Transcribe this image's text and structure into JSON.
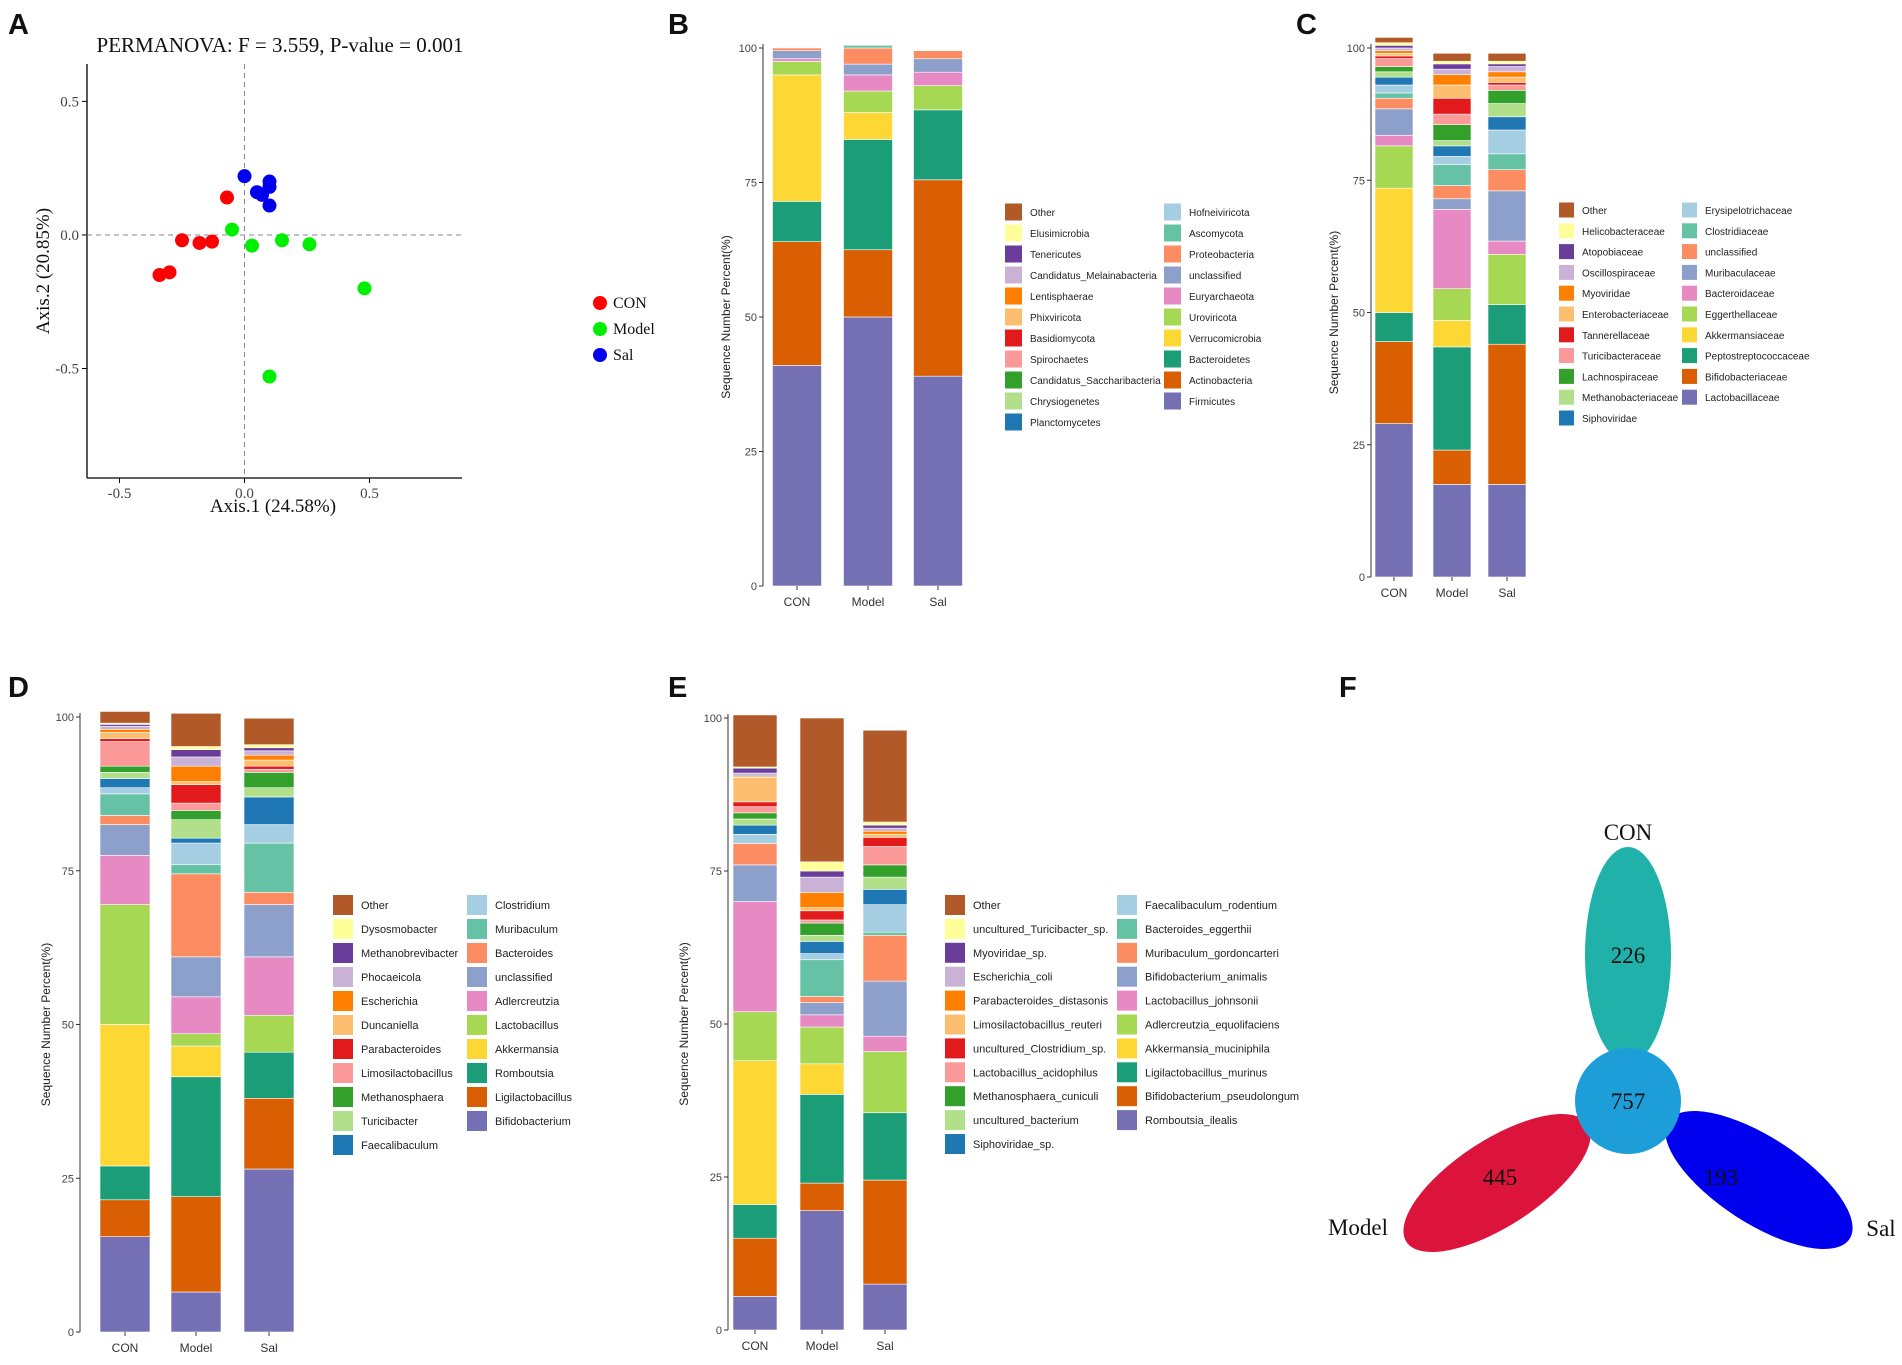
{
  "panels": {
    "A": "A",
    "B": "B",
    "C": "C",
    "D": "D",
    "E": "E",
    "F": "F"
  },
  "chart_data": [
    {
      "panel": "A",
      "type": "scatter",
      "title": "PERMANOVA: F = 3.559, P-value = 0.001",
      "xlabel": "Axis.1 (24.58%)",
      "ylabel": "Axis.2 (20.85%)",
      "xlim": [
        -0.63,
        0.87
      ],
      "ylim": [
        -0.91,
        0.64
      ],
      "xticks": [
        -0.5,
        0.0,
        0.5
      ],
      "yticks": [
        0.5,
        0.0,
        -0.5
      ],
      "xtick_labels": [
        "-0.5",
        "0.0",
        "0.5"
      ],
      "ytick_labels": [
        "0.5",
        "0.0",
        "-0.5"
      ],
      "series": [
        {
          "name": "CON",
          "color": "#ff0000",
          "points": [
            [
              -0.34,
              -0.15
            ],
            [
              -0.3,
              -0.14
            ],
            [
              -0.25,
              -0.02
            ],
            [
              -0.18,
              -0.03
            ],
            [
              -0.13,
              -0.025
            ],
            [
              -0.07,
              0.14
            ]
          ]
        },
        {
          "name": "Model",
          "color": "#00ee00",
          "points": [
            [
              -0.05,
              0.02
            ],
            [
              0.03,
              -0.04
            ],
            [
              0.15,
              -0.02
            ],
            [
              0.26,
              -0.035
            ],
            [
              0.48,
              -0.2
            ],
            [
              0.1,
              -0.53
            ]
          ]
        },
        {
          "name": "Sal",
          "color": "#0000ee",
          "points": [
            [
              0.0,
              0.22
            ],
            [
              0.05,
              0.16
            ],
            [
              0.07,
              0.15
            ],
            [
              0.1,
              0.2
            ],
            [
              0.1,
              0.18
            ],
            [
              0.1,
              0.11
            ]
          ]
        }
      ]
    },
    {
      "panel": "B",
      "type": "bar",
      "stacked": true,
      "ylabel": "Sequence Number Percent(%)",
      "ylim": [
        0,
        100
      ],
      "yticks": [
        "0",
        "25",
        "50",
        "75",
        "100"
      ],
      "categories": [
        "CON",
        "Model",
        "Sal"
      ],
      "series": [
        {
          "name": "Firmicutes",
          "color": "#7570b3",
          "values": [
            41,
            50,
            39
          ]
        },
        {
          "name": "Actinobacteria",
          "color": "#d95f02",
          "values": [
            23,
            12.5,
            36.5
          ]
        },
        {
          "name": "Bacteroidetes",
          "color": "#1b9e77",
          "values": [
            7.5,
            20.5,
            13
          ]
        },
        {
          "name": "Verrucomicrobia",
          "color": "#fdd835",
          "values": [
            23.5,
            5,
            0
          ]
        },
        {
          "name": "Uroviricota",
          "color": "#a6d854",
          "values": [
            2.5,
            4,
            4.5
          ]
        },
        {
          "name": "Euryarchaeota",
          "color": "#e78ac3",
          "values": [
            0.5,
            3,
            2.5
          ]
        },
        {
          "name": "unclassified",
          "color": "#8da0cb",
          "values": [
            1.5,
            2,
            2.5
          ]
        },
        {
          "name": "Proteobacteria",
          "color": "#fc8d62",
          "values": [
            0.5,
            3,
            1.5
          ]
        },
        {
          "name": "Ascomycota",
          "color": "#66c2a5",
          "values": [
            0,
            0.5,
            0
          ]
        },
        {
          "name": "Hofneiviricota",
          "color": "#a6cee3",
          "values": [
            0,
            0,
            0
          ]
        },
        {
          "name": "Planctomycetes",
          "color": "#1f78b4",
          "values": [
            0,
            0,
            0
          ]
        },
        {
          "name": "Chrysiogenetes",
          "color": "#b2df8a",
          "values": [
            0,
            0,
            0
          ]
        },
        {
          "name": "Candidatus_Saccharibacteria",
          "color": "#33a02c",
          "values": [
            0,
            0,
            0
          ]
        },
        {
          "name": "Spirochaetes",
          "color": "#fb9a99",
          "values": [
            0,
            0,
            0
          ]
        },
        {
          "name": "Basidiomycota",
          "color": "#e31a1c",
          "values": [
            0,
            0,
            0
          ]
        },
        {
          "name": "Phixviricota",
          "color": "#fdbf6f",
          "values": [
            0,
            0,
            0
          ]
        },
        {
          "name": "Lentisphaerae",
          "color": "#ff7f00",
          "values": [
            0,
            0,
            0
          ]
        },
        {
          "name": "Candidatus_Melainabacteria",
          "color": "#cab2d6",
          "values": [
            0,
            0,
            0
          ]
        },
        {
          "name": "Tenericutes",
          "color": "#6a3d9a",
          "values": [
            0,
            0,
            0
          ]
        },
        {
          "name": "Elusimicrobia",
          "color": "#ffff99",
          "values": [
            0,
            0,
            0
          ]
        },
        {
          "name": "Other",
          "color": "#b15928",
          "values": [
            0,
            0,
            0
          ]
        }
      ]
    },
    {
      "panel": "C",
      "type": "bar",
      "stacked": true,
      "ylabel": "Sequence Number Percent(%)",
      "ylim": [
        0,
        100
      ],
      "yticks": [
        "0",
        "25",
        "50",
        "75",
        "100"
      ],
      "categories": [
        "CON",
        "Model",
        "Sal"
      ],
      "series": [
        {
          "name": "Lactobacillaceae",
          "color": "#7570b3",
          "values": [
            29,
            17.5,
            17.5
          ]
        },
        {
          "name": "Bifidobacteriaceae",
          "color": "#d95f02",
          "values": [
            15.5,
            6.5,
            26.5
          ]
        },
        {
          "name": "Peptostreptococcaceae",
          "color": "#1b9e77",
          "values": [
            5.5,
            19.5,
            7.5
          ]
        },
        {
          "name": "Akkermansiaceae",
          "color": "#fdd835",
          "values": [
            23.5,
            5,
            0
          ]
        },
        {
          "name": "Eggerthellaceae",
          "color": "#a6d854",
          "values": [
            8,
            6,
            9.5
          ]
        },
        {
          "name": "Bacteroidaceae",
          "color": "#e78ac3",
          "values": [
            2,
            15,
            2.5
          ]
        },
        {
          "name": "Muribaculaceae",
          "color": "#8da0cb",
          "values": [
            5,
            2,
            9.5
          ]
        },
        {
          "name": "unclassified",
          "color": "#fc8d62",
          "values": [
            2,
            2.5,
            4
          ]
        },
        {
          "name": "Clostridiaceae",
          "color": "#66c2a5",
          "values": [
            1,
            4,
            3
          ]
        },
        {
          "name": "Erysipelotrichaceae",
          "color": "#a6cee3",
          "values": [
            1.5,
            1.5,
            4.5
          ]
        },
        {
          "name": "Siphoviridae",
          "color": "#1f78b4",
          "values": [
            1.5,
            2,
            2.5
          ]
        },
        {
          "name": "Methanobacteriaceae",
          "color": "#b2df8a",
          "values": [
            1,
            1,
            2.5
          ]
        },
        {
          "name": "Lachnospiraceae",
          "color": "#33a02c",
          "values": [
            1,
            3,
            2.5
          ]
        },
        {
          "name": "Turicibacteraceae",
          "color": "#fb9a99",
          "values": [
            1.5,
            2,
            1
          ]
        },
        {
          "name": "Tannerellaceae",
          "color": "#e31a1c",
          "values": [
            0.5,
            3,
            0.5
          ]
        },
        {
          "name": "Enterobacteriaceae",
          "color": "#fdbf6f",
          "values": [
            0.5,
            2.5,
            1
          ]
        },
        {
          "name": "Myoviridae",
          "color": "#ff7f00",
          "values": [
            0.5,
            2,
            1
          ]
        },
        {
          "name": "Oscillospiraceae",
          "color": "#cab2d6",
          "values": [
            0.5,
            1,
            1
          ]
        },
        {
          "name": "Atopobiaceae",
          "color": "#6a3d9a",
          "values": [
            0.5,
            1,
            0.5
          ]
        },
        {
          "name": "Helicobacteraceae",
          "color": "#ffff99",
          "values": [
            0.5,
            0.5,
            0.5
          ]
        },
        {
          "name": "Other",
          "color": "#b15928",
          "values": [
            1,
            1.5,
            1.5
          ]
        }
      ]
    },
    {
      "panel": "D",
      "type": "bar",
      "stacked": true,
      "ylabel": "Sequence Number Percent(%)",
      "ylim": [
        0,
        100
      ],
      "yticks": [
        "0",
        "25",
        "50",
        "75",
        "100"
      ],
      "categories": [
        "CON",
        "Model",
        "Sal"
      ],
      "series": [
        {
          "name": "Bifidobacterium",
          "color": "#7570b3",
          "values": [
            15.5,
            6.5,
            26.5
          ]
        },
        {
          "name": "Ligilactobacillus",
          "color": "#d95f02",
          "values": [
            6,
            15.5,
            11.5
          ]
        },
        {
          "name": "Romboutsia",
          "color": "#1b9e77",
          "values": [
            5.5,
            19.5,
            7.5
          ]
        },
        {
          "name": "Akkermansia",
          "color": "#fdd835",
          "values": [
            23,
            5,
            0
          ]
        },
        {
          "name": "Lactobacillus",
          "color": "#a6d854",
          "values": [
            19.5,
            2,
            6
          ]
        },
        {
          "name": "Adlercreutzia",
          "color": "#e78ac3",
          "values": [
            8,
            6,
            9.5
          ]
        },
        {
          "name": "unclassified",
          "color": "#8da0cb",
          "values": [
            5,
            6.5,
            8.5
          ]
        },
        {
          "name": "Bacteroides",
          "color": "#fc8d62",
          "values": [
            1.5,
            13.5,
            2
          ]
        },
        {
          "name": "Muribaculum",
          "color": "#66c2a5",
          "values": [
            3.5,
            1.5,
            8
          ]
        },
        {
          "name": "Clostridium",
          "color": "#a6cee3",
          "values": [
            1,
            3.5,
            3
          ]
        },
        {
          "name": "Faecalibaculum",
          "color": "#1f78b4",
          "values": [
            1.5,
            0.8,
            4.5
          ]
        },
        {
          "name": "Turicibacter",
          "color": "#b2df8a",
          "values": [
            1,
            3,
            1.5
          ]
        },
        {
          "name": "Methanosphaera",
          "color": "#33a02c",
          "values": [
            1,
            1.5,
            2.5
          ]
        },
        {
          "name": "Limosilactobacillus",
          "color": "#fb9a99",
          "values": [
            4,
            1.2,
            0.5
          ]
        },
        {
          "name": "Parabacteroides",
          "color": "#e31a1c",
          "values": [
            0.5,
            3,
            0.5
          ]
        },
        {
          "name": "Duncaniella",
          "color": "#fdbf6f",
          "values": [
            1,
            0.5,
            1
          ]
        },
        {
          "name": "Escherichia",
          "color": "#ff7f00",
          "values": [
            0.5,
            2.5,
            0.8
          ]
        },
        {
          "name": "Phocaeicola",
          "color": "#cab2d6",
          "values": [
            0.5,
            1.5,
            0.7
          ]
        },
        {
          "name": "Methanobrevibacter",
          "color": "#6a3d9a",
          "values": [
            0.3,
            1.2,
            0.5
          ]
        },
        {
          "name": "Dysosmobacter",
          "color": "#ffff99",
          "values": [
            0.2,
            0.5,
            0.5
          ]
        },
        {
          "name": "Other",
          "color": "#b15928",
          "values": [
            1.9,
            5.4,
            4.3
          ]
        }
      ]
    },
    {
      "panel": "E",
      "type": "bar",
      "stacked": true,
      "ylabel": "Sequence Number Percent(%)",
      "ylim": [
        0,
        100
      ],
      "yticks": [
        "0",
        "25",
        "50",
        "75",
        "100"
      ],
      "categories": [
        "CON",
        "Model",
        "Sal"
      ],
      "series": [
        {
          "name": "Romboutsia_ilealis",
          "color": "#7570b3",
          "values": [
            5.5,
            19.5,
            7.5
          ]
        },
        {
          "name": "Bifidobacterium_pseudolongum",
          "color": "#d95f02",
          "values": [
            9.5,
            4.5,
            17
          ]
        },
        {
          "name": "Ligilactobacillus_murinus",
          "color": "#1b9e77",
          "values": [
            5.5,
            14.5,
            11
          ]
        },
        {
          "name": "Akkermansia_muciniphila",
          "color": "#fdd835",
          "values": [
            23.5,
            5,
            0
          ]
        },
        {
          "name": "Adlercreutzia_equolifaciens",
          "color": "#a6d854",
          "values": [
            8,
            6,
            10
          ]
        },
        {
          "name": "Lactobacillus_johnsonii",
          "color": "#e78ac3",
          "values": [
            18,
            2,
            2.5
          ]
        },
        {
          "name": "Bifidobacterium_animalis",
          "color": "#8da0cb",
          "values": [
            6,
            2,
            9
          ]
        },
        {
          "name": "Muribaculum_gordoncarteri",
          "color": "#fc8d62",
          "values": [
            3.5,
            1,
            7.5
          ]
        },
        {
          "name": "Bacteroides_eggerthii",
          "color": "#66c2a5",
          "values": [
            0,
            6,
            0.5
          ]
        },
        {
          "name": "Faecalibaculum_rodentium",
          "color": "#a6cee3",
          "values": [
            1.5,
            1,
            4.5
          ]
        },
        {
          "name": "Siphoviridae_sp.",
          "color": "#1f78b4",
          "values": [
            1.5,
            2,
            2.5
          ]
        },
        {
          "name": "uncultured_bacterium",
          "color": "#b2df8a",
          "values": [
            1,
            1,
            2
          ]
        },
        {
          "name": "Methanosphaera_cuniculi",
          "color": "#33a02c",
          "values": [
            1,
            2,
            2
          ]
        },
        {
          "name": "Lactobacillus_acidophilus",
          "color": "#fb9a99",
          "values": [
            1,
            0.5,
            3
          ]
        },
        {
          "name": "uncultured_Clostridium_sp.",
          "color": "#e31a1c",
          "values": [
            0.8,
            1.5,
            1.5
          ]
        },
        {
          "name": "Limosilactobacillus_reuteri",
          "color": "#fdbf6f",
          "values": [
            4,
            0.5,
            0.5
          ]
        },
        {
          "name": "Parabacteroides_distasonis",
          "color": "#ff7f00",
          "values": [
            0.2,
            2.5,
            0.5
          ]
        },
        {
          "name": "Escherichia_coli",
          "color": "#cab2d6",
          "values": [
            0.5,
            2.5,
            0.5
          ]
        },
        {
          "name": "Myoviridae_sp.",
          "color": "#6a3d9a",
          "values": [
            0.8,
            1,
            0.5
          ]
        },
        {
          "name": "uncultured_Turicibacter_sp.",
          "color": "#ffff99",
          "values": [
            0.2,
            1.5,
            0.5
          ]
        },
        {
          "name": "Other",
          "color": "#b15928",
          "values": [
            8.5,
            23.5,
            15
          ]
        }
      ]
    },
    {
      "panel": "F",
      "type": "venn",
      "sets": [
        {
          "name": "CON",
          "unique": 226,
          "color": "#20b2aa"
        },
        {
          "name": "Model",
          "unique": 445,
          "color": "#dc143c"
        },
        {
          "name": "Sal",
          "unique": 193,
          "color": "#0000ee"
        }
      ],
      "shared": 757,
      "shared_color": "#1e9ed8"
    }
  ]
}
